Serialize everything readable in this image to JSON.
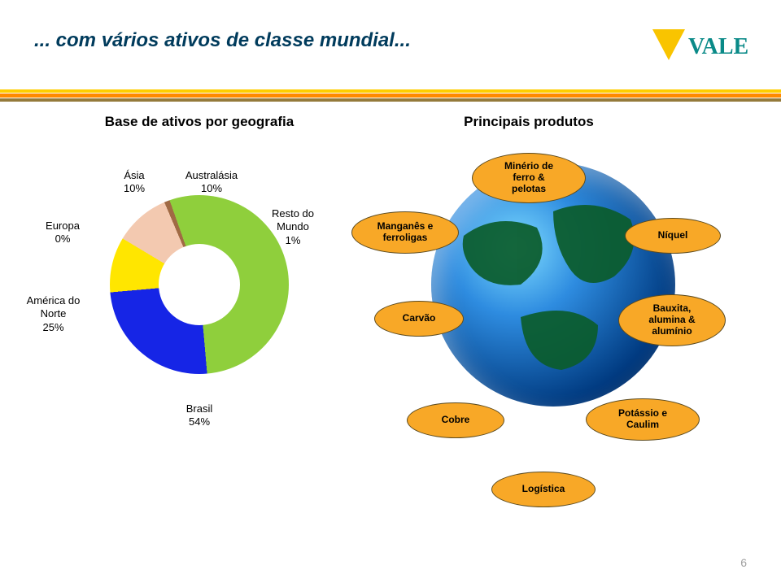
{
  "title": {
    "text": "... com vários ativos de classe mundial...",
    "color": "#003b5c",
    "fontsize": 24
  },
  "logo": {
    "brand": "VALE",
    "text_color": "#0a8a88",
    "v_color": "#f9c400",
    "fontsize": 28
  },
  "stripe_colors": [
    "#ffce00",
    "#ff8a00",
    "#947a3b"
  ],
  "left_section": {
    "heading": "Base de ativos por geografia",
    "heading_fontsize": 17
  },
  "right_section": {
    "heading": "Principais produtos",
    "heading_fontsize": 17
  },
  "pie": {
    "type": "donut",
    "inner_radius_pct": 45,
    "background": "#ffffff",
    "slices": [
      {
        "label": "Europa\n0%",
        "value": 0,
        "color": "#1e3f9b"
      },
      {
        "label": "Ásia\n10%",
        "value": 10,
        "color": "#ffe600"
      },
      {
        "label": "Australásia\n10%",
        "value": 10,
        "color": "#f3c9b0"
      },
      {
        "label": "Resto do\nMundo\n1%",
        "value": 1,
        "color": "#a06a44"
      },
      {
        "label": "Brasil\n54%",
        "value": 54,
        "color": "#8fcf3c"
      },
      {
        "label": "América do\nNorte\n25%",
        "value": 25,
        "color": "#1625e6"
      }
    ],
    "label_fontsize": 13,
    "start_angle_deg": -95
  },
  "products": {
    "oval_fill": "#f8a827",
    "oval_border": "#5b4a1f",
    "oval_fontsize": 12,
    "items": [
      {
        "label": "Minério de\nferro &\npelotas"
      },
      {
        "label": "Manganês e\nferroligas"
      },
      {
        "label": "Níquel"
      },
      {
        "label": "Carvão"
      },
      {
        "label": "Bauxita,\nalumina &\nalumínio"
      },
      {
        "label": "Cobre"
      },
      {
        "label": "Potássio e\nCaulim"
      },
      {
        "label": "Logística"
      }
    ]
  },
  "page_number": "6"
}
